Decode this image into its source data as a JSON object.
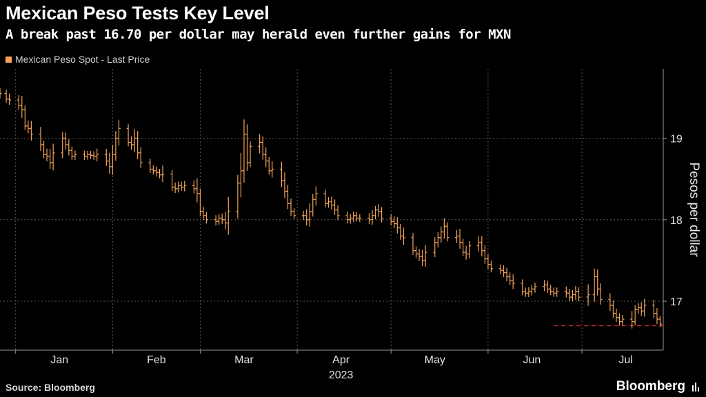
{
  "title": "Mexican Peso Tests Key Level",
  "subtitle": "A break past 16.70 per dollar may herald even further gains for MXN",
  "legend": {
    "label": "Mexican Peso Spot - Last Price",
    "color": "#f5a45a"
  },
  "source": "Source: Bloomberg",
  "brand": "Bloomberg",
  "chart_data": {
    "type": "line",
    "title": "Mexican Peso Tests Key Level",
    "subtitle": "A break past 16.70 per dollar may herald even further gains for MXN",
    "ylabel": "Pesos per dollar",
    "xlabel": "2023",
    "ylim": [
      16.4,
      19.85
    ],
    "xlim": [
      "2022-12-27",
      "2023-07-27"
    ],
    "yticks": [
      17,
      18,
      19
    ],
    "xticks": [
      {
        "label": "Jan",
        "date": "2023-01-15"
      },
      {
        "label": "Feb",
        "date": "2023-02-15"
      },
      {
        "label": "Mar",
        "date": "2023-03-15"
      },
      {
        "label": "Apr",
        "date": "2023-04-15"
      },
      {
        "label": "May",
        "date": "2023-05-15"
      },
      {
        "label": "Jun",
        "date": "2023-06-15"
      },
      {
        "label": "Jul",
        "date": "2023-07-15"
      }
    ],
    "year_label": "2023",
    "grid": true,
    "legend_position": "top-left",
    "reference_line": {
      "value": 16.7,
      "style": "dashed",
      "color": "#c0272d",
      "from": "2023-06-22",
      "to": "2023-07-26"
    },
    "series": [
      {
        "name": "Mexican Peso Spot - Last Price",
        "color": "#f5a45a",
        "points": [
          [
            "2022-12-27",
            19.55
          ],
          [
            "2022-12-29",
            19.48
          ],
          [
            "2022-12-30",
            19.47
          ],
          [
            "2023-01-02",
            19.4
          ],
          [
            "2023-01-03",
            19.35
          ],
          [
            "2023-01-04",
            19.15
          ],
          [
            "2023-01-05",
            19.12
          ],
          [
            "2023-01-06",
            19.05
          ],
          [
            "2023-01-09",
            18.92
          ],
          [
            "2023-01-10",
            18.8
          ],
          [
            "2023-01-11",
            18.78
          ],
          [
            "2023-01-12",
            18.7
          ],
          [
            "2023-01-13",
            18.82
          ],
          [
            "2023-01-16",
            19.0
          ],
          [
            "2023-01-17",
            18.92
          ],
          [
            "2023-01-18",
            18.85
          ],
          [
            "2023-01-19",
            18.78
          ],
          [
            "2023-01-20",
            18.8
          ],
          [
            "2023-01-23",
            18.78
          ],
          [
            "2023-01-24",
            18.8
          ],
          [
            "2023-01-25",
            18.79
          ],
          [
            "2023-01-26",
            18.78
          ],
          [
            "2023-01-27",
            18.8
          ],
          [
            "2023-01-30",
            18.72
          ],
          [
            "2023-01-31",
            18.65
          ],
          [
            "2023-02-01",
            18.8
          ],
          [
            "2023-02-02",
            19.0
          ],
          [
            "2023-02-03",
            19.12
          ],
          [
            "2023-02-06",
            18.95
          ],
          [
            "2023-02-07",
            18.92
          ],
          [
            "2023-02-08",
            19.0
          ],
          [
            "2023-02-09",
            18.82
          ],
          [
            "2023-02-10",
            18.7
          ],
          [
            "2023-02-13",
            18.62
          ],
          [
            "2023-02-14",
            18.6
          ],
          [
            "2023-02-15",
            18.58
          ],
          [
            "2023-02-16",
            18.55
          ],
          [
            "2023-02-17",
            18.56
          ],
          [
            "2023-02-20",
            18.4
          ],
          [
            "2023-02-21",
            18.38
          ],
          [
            "2023-02-22",
            18.42
          ],
          [
            "2023-02-23",
            18.4
          ],
          [
            "2023-02-24",
            18.42
          ],
          [
            "2023-02-27",
            18.38
          ],
          [
            "2023-02-28",
            18.32
          ],
          [
            "2023-03-01",
            18.1
          ],
          [
            "2023-03-02",
            18.05
          ],
          [
            "2023-03-03",
            18.0
          ],
          [
            "2023-03-06",
            17.98
          ],
          [
            "2023-03-07",
            18.02
          ],
          [
            "2023-03-08",
            18.0
          ],
          [
            "2023-03-09",
            17.96
          ],
          [
            "2023-03-10",
            18.1
          ],
          [
            "2023-03-13",
            18.45
          ],
          [
            "2023-03-14",
            18.6
          ],
          [
            "2023-03-15",
            19.05
          ],
          [
            "2023-03-16",
            18.7
          ],
          [
            "2023-03-17",
            18.9
          ],
          [
            "2023-03-20",
            18.95
          ],
          [
            "2023-03-21",
            18.8
          ],
          [
            "2023-03-22",
            18.72
          ],
          [
            "2023-03-23",
            18.6
          ],
          [
            "2023-03-24",
            18.62
          ],
          [
            "2023-03-27",
            18.48
          ],
          [
            "2023-03-28",
            18.35
          ],
          [
            "2023-03-29",
            18.2
          ],
          [
            "2023-03-30",
            18.1
          ],
          [
            "2023-03-31",
            18.05
          ],
          [
            "2023-04-03",
            18.05
          ],
          [
            "2023-04-04",
            18.0
          ],
          [
            "2023-04-05",
            18.1
          ],
          [
            "2023-04-06",
            18.25
          ],
          [
            "2023-04-07",
            18.32
          ],
          [
            "2023-04-10",
            18.2
          ],
          [
            "2023-04-11",
            18.22
          ],
          [
            "2023-04-12",
            18.18
          ],
          [
            "2023-04-13",
            18.12
          ],
          [
            "2023-04-14",
            18.05
          ],
          [
            "2023-04-17",
            18.0
          ],
          [
            "2023-04-18",
            18.02
          ],
          [
            "2023-04-19",
            18.05
          ],
          [
            "2023-04-20",
            18.02
          ],
          [
            "2023-04-21",
            18.02
          ],
          [
            "2023-04-24",
            18.0
          ],
          [
            "2023-04-25",
            18.05
          ],
          [
            "2023-04-26",
            18.12
          ],
          [
            "2023-04-27",
            18.1
          ],
          [
            "2023-04-28",
            18.02
          ],
          [
            "2023-05-01",
            17.98
          ],
          [
            "2023-05-02",
            17.95
          ],
          [
            "2023-05-03",
            17.9
          ],
          [
            "2023-05-04",
            17.8
          ],
          [
            "2023-05-05",
            17.78
          ],
          [
            "2023-05-08",
            17.62
          ],
          [
            "2023-05-09",
            17.58
          ],
          [
            "2023-05-10",
            17.55
          ],
          [
            "2023-05-11",
            17.5
          ],
          [
            "2023-05-12",
            17.6
          ],
          [
            "2023-05-15",
            17.72
          ],
          [
            "2023-05-16",
            17.78
          ],
          [
            "2023-05-17",
            17.85
          ],
          [
            "2023-05-18",
            17.92
          ],
          [
            "2023-05-19",
            17.78
          ],
          [
            "2023-05-22",
            17.8
          ],
          [
            "2023-05-23",
            17.72
          ],
          [
            "2023-05-24",
            17.6
          ],
          [
            "2023-05-25",
            17.58
          ],
          [
            "2023-05-26",
            17.68
          ],
          [
            "2023-05-29",
            17.72
          ],
          [
            "2023-05-30",
            17.62
          ],
          [
            "2023-05-31",
            17.52
          ],
          [
            "2023-06-01",
            17.45
          ],
          [
            "2023-06-02",
            17.4
          ],
          [
            "2023-06-05",
            17.38
          ],
          [
            "2023-06-06",
            17.35
          ],
          [
            "2023-06-07",
            17.3
          ],
          [
            "2023-06-08",
            17.25
          ],
          [
            "2023-06-09",
            17.22
          ],
          [
            "2023-06-12",
            17.12
          ],
          [
            "2023-06-13",
            17.1
          ],
          [
            "2023-06-14",
            17.12
          ],
          [
            "2023-06-15",
            17.15
          ],
          [
            "2023-06-16",
            17.18
          ],
          [
            "2023-06-19",
            17.2
          ],
          [
            "2023-06-20",
            17.15
          ],
          [
            "2023-06-21",
            17.12
          ],
          [
            "2023-06-22",
            17.1
          ],
          [
            "2023-06-23",
            17.12
          ],
          [
            "2023-06-26",
            17.1
          ],
          [
            "2023-06-27",
            17.05
          ],
          [
            "2023-06-28",
            17.08
          ],
          [
            "2023-06-29",
            17.12
          ],
          [
            "2023-06-30",
            17.05
          ],
          [
            "2023-07-03",
            17.08
          ],
          [
            "2023-07-05",
            17.3
          ],
          [
            "2023-07-06",
            17.15
          ],
          [
            "2023-07-07",
            17.02
          ],
          [
            "2023-07-10",
            16.95
          ],
          [
            "2023-07-11",
            16.85
          ],
          [
            "2023-07-12",
            16.8
          ],
          [
            "2023-07-13",
            16.75
          ],
          [
            "2023-07-14",
            16.78
          ],
          [
            "2023-07-17",
            16.75
          ],
          [
            "2023-07-18",
            16.9
          ],
          [
            "2023-07-19",
            16.92
          ],
          [
            "2023-07-20",
            16.88
          ],
          [
            "2023-07-21",
            16.95
          ],
          [
            "2023-07-24",
            16.85
          ],
          [
            "2023-07-25",
            16.78
          ],
          [
            "2023-07-26",
            16.72
          ]
        ]
      }
    ]
  }
}
